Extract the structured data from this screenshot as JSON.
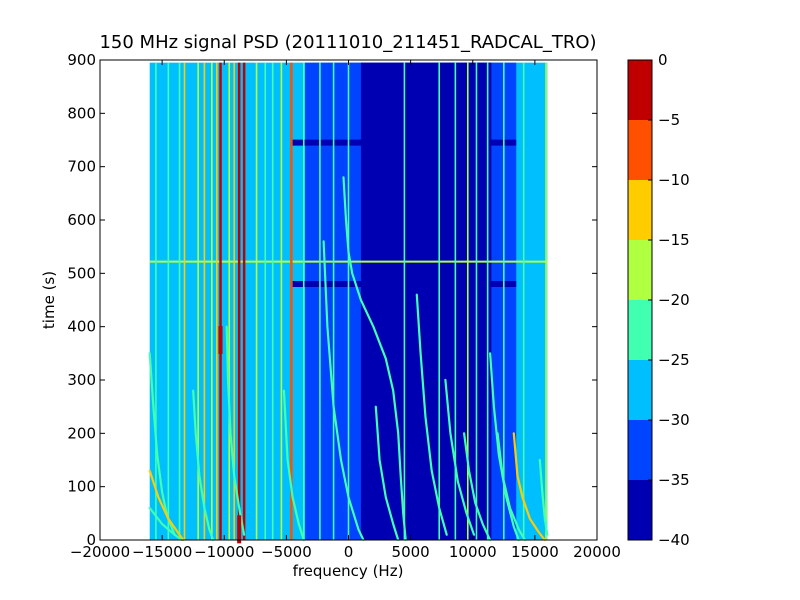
{
  "chart_data": {
    "type": "heatmap",
    "title": "150 MHz signal PSD (20111010_211451_RADCAL_TRO)",
    "xlabel": "frequency (Hz)",
    "ylabel": "time (s)",
    "xlim": [
      -20000,
      20000
    ],
    "ylim": [
      0,
      900
    ],
    "xticks": [
      -20000,
      -15000,
      -10000,
      -5000,
      0,
      5000,
      10000,
      15000,
      20000
    ],
    "yticks": [
      0,
      100,
      200,
      300,
      400,
      500,
      600,
      700,
      800,
      900
    ],
    "data_extent": {
      "x": [
        -16000,
        16000
      ],
      "y": [
        0,
        895
      ]
    },
    "background_level": -27,
    "colorbar": {
      "range": [
        -40,
        0
      ],
      "levels": [
        -40,
        -35,
        -30,
        -25,
        -20,
        -15,
        -10,
        -5,
        0
      ],
      "tick_labels": [
        "0",
        "−5",
        "−10",
        "−15",
        "−20",
        "−25",
        "−30",
        "−35",
        "−40"
      ],
      "colors": [
        "#0000b3",
        "#0044ff",
        "#00bfff",
        "#40ffb0",
        "#b0ff40",
        "#ffcc00",
        "#ff5000",
        "#c00000"
      ]
    },
    "low_regions": [
      {
        "x": [
          -3500,
          13500
        ],
        "y": [
          0,
          895
        ],
        "level": -32
      },
      {
        "x": [
          1000,
          11500
        ],
        "y": [
          0,
          895
        ],
        "level": -37
      }
    ],
    "vertical_lines": [
      {
        "x": -15500,
        "level": -22
      },
      {
        "x": -14500,
        "level": -22
      },
      {
        "x": -13600,
        "level": -22
      },
      {
        "x": -13200,
        "level": -12
      },
      {
        "x": -12100,
        "level": -17
      },
      {
        "x": -11600,
        "level": -12
      },
      {
        "x": -11000,
        "level": -17
      },
      {
        "x": -10600,
        "level": -12
      },
      {
        "x": -10300,
        "level": -2
      },
      {
        "x": -9600,
        "level": -17
      },
      {
        "x": -9200,
        "level": -12
      },
      {
        "x": -8800,
        "level": -2
      },
      {
        "x": -8400,
        "level": -2
      },
      {
        "x": -7400,
        "level": -17
      },
      {
        "x": -6700,
        "level": -22
      },
      {
        "x": -6100,
        "level": -22
      },
      {
        "x": -5400,
        "level": -17
      },
      {
        "x": -4600,
        "level": -7
      },
      {
        "x": -3600,
        "level": -22
      },
      {
        "x": -2300,
        "level": -22
      },
      {
        "x": -1200,
        "level": -22
      },
      {
        "x": 0,
        "level": -22
      },
      {
        "x": 4500,
        "level": -22
      },
      {
        "x": 7300,
        "level": -22
      },
      {
        "x": 8600,
        "level": -22
      },
      {
        "x": 9600,
        "level": -17
      },
      {
        "x": 10300,
        "level": -22
      },
      {
        "x": 11200,
        "level": -22
      },
      {
        "x": 12500,
        "level": -22
      },
      {
        "x": 14100,
        "level": -22
      },
      {
        "x": 15900,
        "level": -17
      }
    ],
    "horizontal_lines": [
      {
        "y": 522,
        "x": [
          -16000,
          16000
        ],
        "level": -17
      },
      {
        "y": 745,
        "x": [
          -4500,
          13500
        ],
        "level": -37
      },
      {
        "y": 480,
        "x": [
          -4500,
          13500
        ],
        "level": -37
      }
    ],
    "curves": [
      {
        "level": -22,
        "points": [
          [
            -16000,
            350
          ],
          [
            -15700,
            250
          ],
          [
            -15400,
            160
          ],
          [
            -15000,
            90
          ],
          [
            -14600,
            45
          ],
          [
            -14000,
            10
          ]
        ]
      },
      {
        "level": -12,
        "points": [
          [
            -16000,
            130
          ],
          [
            -15300,
            80
          ],
          [
            -14500,
            40
          ],
          [
            -13600,
            10
          ],
          [
            -13300,
            0
          ]
        ]
      },
      {
        "level": -22,
        "points": [
          [
            -16000,
            60
          ],
          [
            -15000,
            30
          ],
          [
            -14000,
            10
          ],
          [
            -13400,
            0
          ]
        ]
      },
      {
        "level": -22,
        "points": [
          [
            -12500,
            280
          ],
          [
            -12300,
            200
          ],
          [
            -12000,
            120
          ],
          [
            -11600,
            60
          ],
          [
            -11200,
            20
          ],
          [
            -10900,
            0
          ]
        ]
      },
      {
        "level": -22,
        "points": [
          [
            -9800,
            400
          ],
          [
            -9700,
            300
          ],
          [
            -9500,
            200
          ],
          [
            -9200,
            120
          ],
          [
            -8800,
            60
          ],
          [
            -8400,
            10
          ]
        ]
      },
      {
        "level": -22,
        "points": [
          [
            -5200,
            280
          ],
          [
            -4900,
            150
          ],
          [
            -4500,
            80
          ],
          [
            -4000,
            30
          ],
          [
            -3600,
            0
          ]
        ]
      },
      {
        "level": -22,
        "points": [
          [
            -2000,
            560
          ],
          [
            -1700,
            400
          ],
          [
            -1200,
            250
          ],
          [
            -600,
            150
          ],
          [
            0,
            80
          ],
          [
            800,
            20
          ],
          [
            1200,
            0
          ]
        ]
      },
      {
        "level": -22,
        "points": [
          [
            -400,
            680
          ],
          [
            -200,
            600
          ],
          [
            0,
            540
          ],
          [
            300,
            500
          ],
          [
            1000,
            450
          ],
          [
            2000,
            400
          ],
          [
            3000,
            340
          ],
          [
            3600,
            280
          ],
          [
            4000,
            200
          ],
          [
            4200,
            120
          ],
          [
            4400,
            50
          ],
          [
            4600,
            0
          ]
        ]
      },
      {
        "level": -22,
        "points": [
          [
            2200,
            250
          ],
          [
            2500,
            150
          ],
          [
            3000,
            80
          ],
          [
            3600,
            30
          ],
          [
            4000,
            0
          ]
        ]
      },
      {
        "level": -22,
        "points": [
          [
            5500,
            460
          ],
          [
            5800,
            350
          ],
          [
            6200,
            230
          ],
          [
            6700,
            130
          ],
          [
            7300,
            60
          ],
          [
            7900,
            10
          ]
        ]
      },
      {
        "level": -22,
        "points": [
          [
            7800,
            300
          ],
          [
            8200,
            200
          ],
          [
            8800,
            110
          ],
          [
            9500,
            50
          ],
          [
            10100,
            10
          ]
        ]
      },
      {
        "level": -22,
        "points": [
          [
            9300,
            200
          ],
          [
            9700,
            130
          ],
          [
            10200,
            70
          ],
          [
            10800,
            30
          ],
          [
            11400,
            0
          ]
        ]
      },
      {
        "level": -22,
        "points": [
          [
            11400,
            350
          ],
          [
            11700,
            250
          ],
          [
            12100,
            160
          ],
          [
            12700,
            80
          ],
          [
            13300,
            25
          ],
          [
            13700,
            0
          ]
        ]
      },
      {
        "level": -22,
        "points": [
          [
            12000,
            200
          ],
          [
            12400,
            120
          ],
          [
            13000,
            60
          ],
          [
            13700,
            20
          ],
          [
            14200,
            0
          ]
        ]
      },
      {
        "level": -12,
        "points": [
          [
            13300,
            200
          ],
          [
            13600,
            120
          ],
          [
            14000,
            80
          ],
          [
            14600,
            40
          ],
          [
            15300,
            15
          ],
          [
            15800,
            0
          ]
        ]
      },
      {
        "level": -22,
        "points": [
          [
            15400,
            150
          ],
          [
            15600,
            90
          ],
          [
            15800,
            40
          ],
          [
            16000,
            10
          ]
        ]
      }
    ],
    "hotspots": [
      {
        "x": -10300,
        "y": 375,
        "level": -2
      },
      {
        "x": -8800,
        "y": 20,
        "level": -2
      }
    ]
  }
}
